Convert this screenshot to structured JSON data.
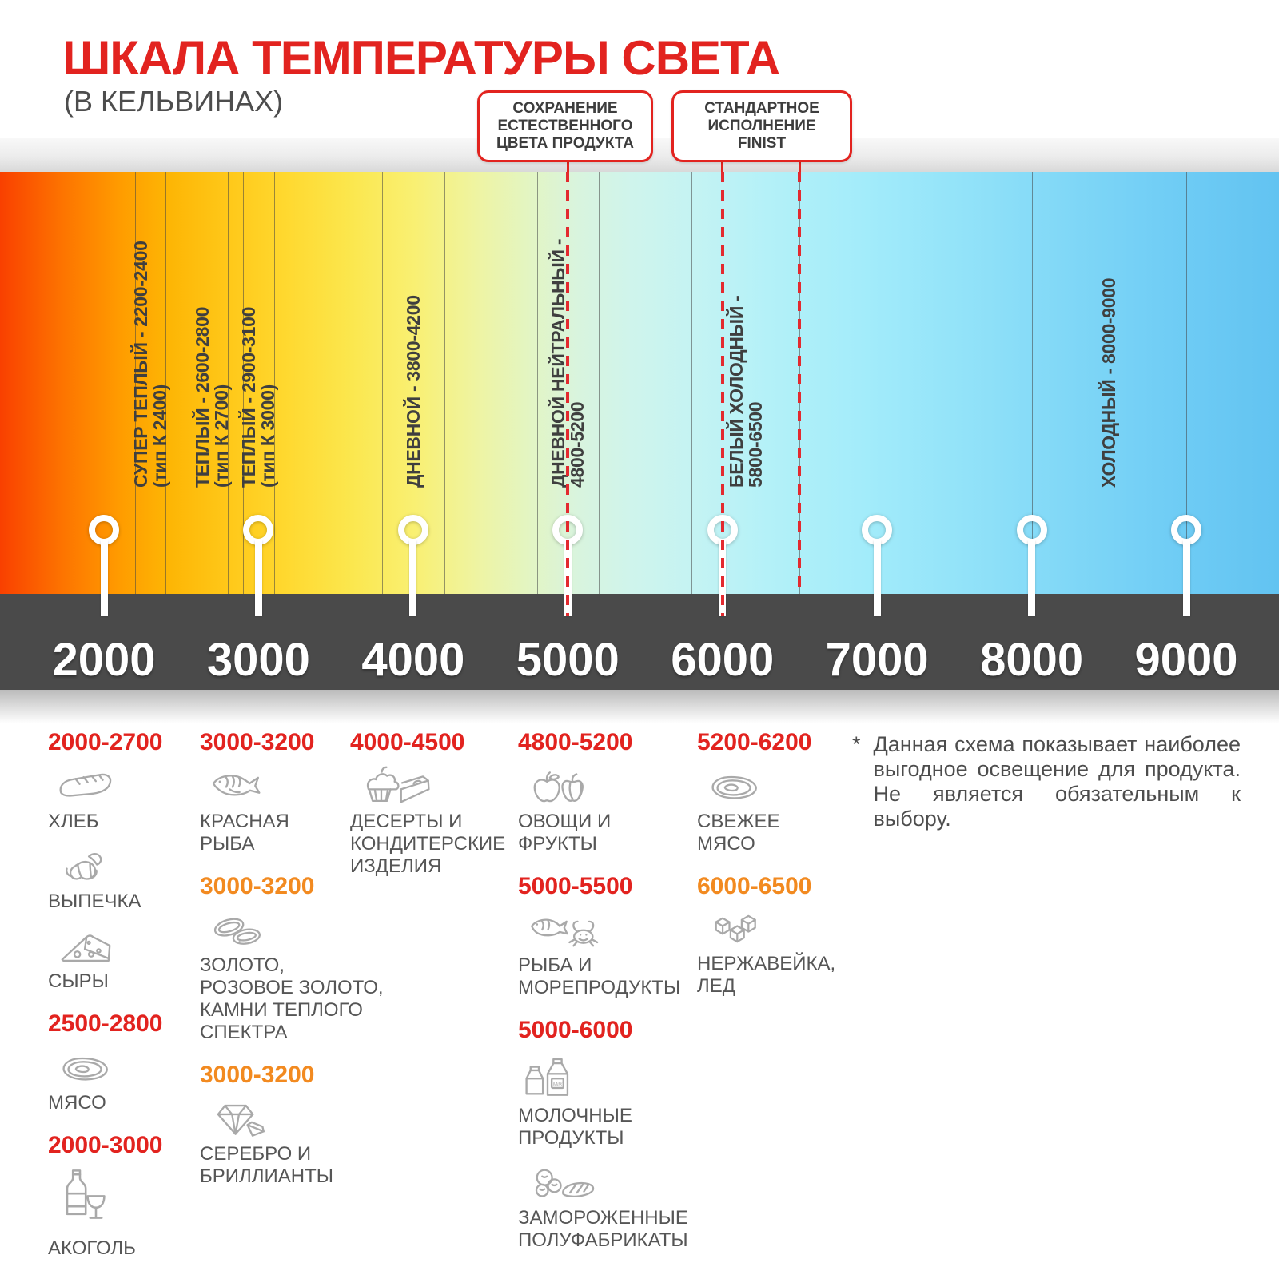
{
  "header": {
    "title": "ШКАЛА ТЕМПЕРАТУРЫ СВЕТА",
    "subtitle": "(В КЕЛЬВИНАХ)"
  },
  "callouts": [
    {
      "label": "СОХРАНЕНИЕ\nЕСТЕСТВЕННОГО\nЦВЕТА ПРОДУКТА",
      "marks_kelvin": [
        5000
      ]
    },
    {
      "label": "СТАНДАРТНОЕ\nИСПОЛНЕНИЕ\nFINIST",
      "marks_kelvin": [
        6000,
        6500
      ]
    }
  ],
  "scale": {
    "unit": "K",
    "min": 2000,
    "max": 9000,
    "ticks": [
      {
        "kelvin": 2000,
        "label": "2000"
      },
      {
        "kelvin": 3000,
        "label": "3000"
      },
      {
        "kelvin": 4000,
        "label": "4000"
      },
      {
        "kelvin": 5000,
        "label": "5000"
      },
      {
        "kelvin": 6000,
        "label": "6000"
      },
      {
        "kelvin": 7000,
        "label": "7000"
      },
      {
        "kelvin": 8000,
        "label": "8000"
      },
      {
        "kelvin": 9000,
        "label": "9000"
      }
    ],
    "bands": [
      {
        "name": "СУПЕР ТЕПЛЫЙ - 2200-2400",
        "type_note": "(тип К 2400)",
        "from": 2200,
        "to": 2400
      },
      {
        "name": "ТЕПЛЫЙ - 2600-2800",
        "type_note": "(тип К 2700)",
        "from": 2600,
        "to": 2800
      },
      {
        "name": "ТЕПЛЫЙ - 2900-3100",
        "type_note": "(тип К 3000)",
        "from": 2900,
        "to": 3100
      },
      {
        "name": "ДНЕВНОЙ - 3800-4200",
        "type_note": null,
        "from": 3800,
        "to": 4200
      },
      {
        "name": "ДНЕВНОЙ НЕЙТРАЛЬНЫЙ -",
        "type_note": "4800-5200",
        "from": 4800,
        "to": 5200
      },
      {
        "name": "БЕЛЫЙ ХОЛОДНЫЙ -",
        "type_note": "5800-6500",
        "from": 5800,
        "to": 6500
      },
      {
        "name": "ХОЛОДНЫЙ - 8000-9000",
        "type_note": null,
        "from": 8000,
        "to": 9000
      }
    ]
  },
  "categories": {
    "columns": [
      {
        "blocks": [
          {
            "range": "2000-2700",
            "emphasis": "red",
            "items": [
              {
                "icon": "bread-icon",
                "label": "ХЛЕБ"
              },
              {
                "icon": "croissant-icon",
                "label": "ВЫПЕЧКА"
              },
              {
                "icon": "cheese-icon",
                "label": "СЫРЫ"
              }
            ]
          },
          {
            "range": "2500-2800",
            "emphasis": "red",
            "items": [
              {
                "icon": "meat-icon",
                "label": "МЯСО"
              }
            ]
          },
          {
            "range": "2000-3000",
            "emphasis": "red",
            "items": [
              {
                "icon": "alcohol-icon",
                "label": "АКОГОЛЬ"
              }
            ]
          }
        ]
      },
      {
        "blocks": [
          {
            "range": "3000-3200",
            "emphasis": "red",
            "items": [
              {
                "icon": "red-fish-icon",
                "label": "КРАСНАЯ\nРЫБА"
              }
            ]
          },
          {
            "range": "3000-3200",
            "emphasis": "orange",
            "items": [
              {
                "icon": "gold-rings-icon",
                "label": "ЗОЛОТО,\nРОЗОВОЕ ЗОЛОТО,\nКАМНИ ТЕПЛОГО\nСПЕКТРА"
              }
            ]
          },
          {
            "range": "3000-3200",
            "emphasis": "orange",
            "items": [
              {
                "icon": "diamond-icon",
                "label": "СЕРЕБРО И\nБРИЛЛИАНТЫ"
              }
            ]
          }
        ]
      },
      {
        "blocks": [
          {
            "range": "4000-4500",
            "emphasis": "red",
            "items": [
              {
                "icon": "dessert-icon",
                "label": "ДЕСЕРТЫ И\nКОНДИТЕРСКИЕ\nИЗДЕЛИЯ"
              }
            ]
          }
        ]
      },
      {
        "blocks": [
          {
            "range": "4800-5200",
            "emphasis": "red",
            "items": [
              {
                "icon": "vegetables-icon",
                "label": "ОВОЩИ И\nФРУКТЫ"
              }
            ]
          },
          {
            "range": "5000-5500",
            "emphasis": "red",
            "items": [
              {
                "icon": "seafood-icon",
                "label": "РЫБА И\nМОРЕПРОДУКТЫ"
              }
            ]
          },
          {
            "range": "5000-6000",
            "emphasis": "red",
            "items": [
              {
                "icon": "milk-icon",
                "label": "МОЛОЧНЫЕ ПРОДУКТЫ"
              },
              {
                "icon": "frozen-food-icon",
                "label": "ЗАМОРОЖЕННЫЕ\nПОЛУФАБРИКАТЫ"
              }
            ]
          }
        ]
      },
      {
        "blocks": [
          {
            "range": "5200-6200",
            "emphasis": "red",
            "items": [
              {
                "icon": "fresh-meat-icon",
                "label": "СВЕЖЕЕ\nМЯСО"
              }
            ]
          },
          {
            "range": "6000-6500",
            "emphasis": "orange",
            "items": [
              {
                "icon": "ice-icon",
                "label": "НЕРЖАВЕЙКА,\nЛЕД"
              }
            ]
          }
        ]
      }
    ]
  },
  "footnote": {
    "marker": "*",
    "text": "Данная схема показывает наиболее выгодное освещение для продукта. Не является обязательным к выбору."
  },
  "colors": {
    "accent_red": "#e2231f",
    "accent_orange": "#f28a20",
    "axis_bar": "#4a4a4a",
    "icon_stroke": "#a9a9a9",
    "band_label_text": "#3f3f3f",
    "category_text": "#565656"
  }
}
